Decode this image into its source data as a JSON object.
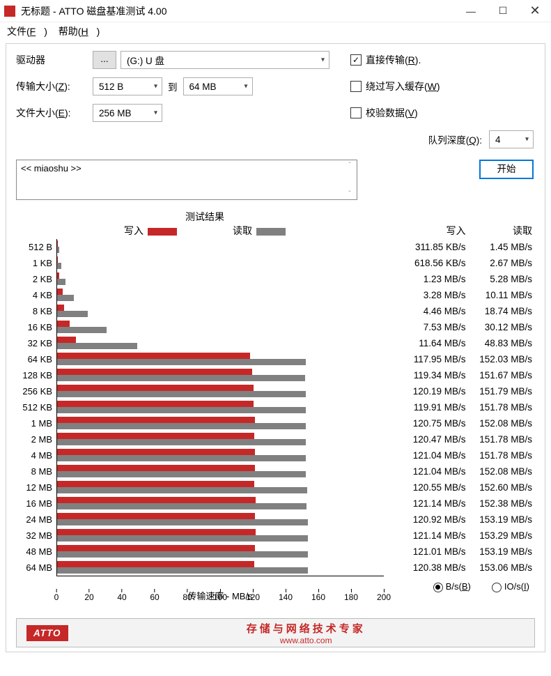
{
  "window": {
    "title": "无标题 - ATTO 磁盘基准测试 4.00"
  },
  "menu": {
    "file": "文件(F)",
    "help": "帮助(H)"
  },
  "labels": {
    "drive": "驱动器",
    "transfer_size": "传输大小(Z):",
    "to": "到",
    "file_size": "文件大小(E):",
    "direct_io": "直接传输(R).",
    "bypass_cache": "绕过写入缓存(W)",
    "verify": "校验数据(V)",
    "queue_depth": "队列深度(Q):",
    "start": "开始",
    "desc": "<< miaoshu >>",
    "results_title": "测试结果",
    "legend_write": "写入",
    "legend_read": "读取",
    "xaxis": "传输速率 - MB/s",
    "col_write": "写入",
    "col_read": "读取",
    "unit_bs": "B/s(B)",
    "unit_ios": "IO/s(I)",
    "footer_cn": "存储与网络技术专家",
    "footer_url": "www.atto.com",
    "atto": "ATTO"
  },
  "form": {
    "drive": "(G:) U 盘",
    "size_from": "512 B",
    "size_to": "64 MB",
    "file_size": "256 MB",
    "queue_depth": "4",
    "direct_io_checked": true,
    "bypass_checked": false,
    "verify_checked": false,
    "unit_selected": "bs"
  },
  "chart": {
    "xmax": 200,
    "xtick_step": 20,
    "write_color": "#c62828",
    "read_color": "#808080",
    "bg": "#ffffff",
    "rows": [
      {
        "label": "512 B",
        "write_mbs": 0.31185,
        "read_mbs": 1.45,
        "write_txt": "311.85 KB/s",
        "read_txt": "1.45 MB/s"
      },
      {
        "label": "1 KB",
        "write_mbs": 0.61856,
        "read_mbs": 2.67,
        "write_txt": "618.56 KB/s",
        "read_txt": "2.67 MB/s"
      },
      {
        "label": "2 KB",
        "write_mbs": 1.23,
        "read_mbs": 5.28,
        "write_txt": "1.23 MB/s",
        "read_txt": "5.28 MB/s"
      },
      {
        "label": "4 KB",
        "write_mbs": 3.28,
        "read_mbs": 10.11,
        "write_txt": "3.28 MB/s",
        "read_txt": "10.11 MB/s"
      },
      {
        "label": "8 KB",
        "write_mbs": 4.46,
        "read_mbs": 18.74,
        "write_txt": "4.46 MB/s",
        "read_txt": "18.74 MB/s"
      },
      {
        "label": "16 KB",
        "write_mbs": 7.53,
        "read_mbs": 30.12,
        "write_txt": "7.53 MB/s",
        "read_txt": "30.12 MB/s"
      },
      {
        "label": "32 KB",
        "write_mbs": 11.64,
        "read_mbs": 48.83,
        "write_txt": "11.64 MB/s",
        "read_txt": "48.83 MB/s"
      },
      {
        "label": "64 KB",
        "write_mbs": 117.95,
        "read_mbs": 152.03,
        "write_txt": "117.95 MB/s",
        "read_txt": "152.03 MB/s"
      },
      {
        "label": "128 KB",
        "write_mbs": 119.34,
        "read_mbs": 151.67,
        "write_txt": "119.34 MB/s",
        "read_txt": "151.67 MB/s"
      },
      {
        "label": "256 KB",
        "write_mbs": 120.19,
        "read_mbs": 151.79,
        "write_txt": "120.19 MB/s",
        "read_txt": "151.79 MB/s"
      },
      {
        "label": "512 KB",
        "write_mbs": 119.91,
        "read_mbs": 151.78,
        "write_txt": "119.91 MB/s",
        "read_txt": "151.78 MB/s"
      },
      {
        "label": "1 MB",
        "write_mbs": 120.75,
        "read_mbs": 152.08,
        "write_txt": "120.75 MB/s",
        "read_txt": "152.08 MB/s"
      },
      {
        "label": "2 MB",
        "write_mbs": 120.47,
        "read_mbs": 151.78,
        "write_txt": "120.47 MB/s",
        "read_txt": "151.78 MB/s"
      },
      {
        "label": "4 MB",
        "write_mbs": 121.04,
        "read_mbs": 151.78,
        "write_txt": "121.04 MB/s",
        "read_txt": "151.78 MB/s"
      },
      {
        "label": "8 MB",
        "write_mbs": 121.04,
        "read_mbs": 152.08,
        "write_txt": "121.04 MB/s",
        "read_txt": "152.08 MB/s"
      },
      {
        "label": "12 MB",
        "write_mbs": 120.55,
        "read_mbs": 152.6,
        "write_txt": "120.55 MB/s",
        "read_txt": "152.60 MB/s"
      },
      {
        "label": "16 MB",
        "write_mbs": 121.14,
        "read_mbs": 152.38,
        "write_txt": "121.14 MB/s",
        "read_txt": "152.38 MB/s"
      },
      {
        "label": "24 MB",
        "write_mbs": 120.92,
        "read_mbs": 153.19,
        "write_txt": "120.92 MB/s",
        "read_txt": "153.19 MB/s"
      },
      {
        "label": "32 MB",
        "write_mbs": 121.14,
        "read_mbs": 153.29,
        "write_txt": "121.14 MB/s",
        "read_txt": "153.29 MB/s"
      },
      {
        "label": "48 MB",
        "write_mbs": 121.01,
        "read_mbs": 153.19,
        "write_txt": "121.01 MB/s",
        "read_txt": "153.19 MB/s"
      },
      {
        "label": "64 MB",
        "write_mbs": 120.38,
        "read_mbs": 153.06,
        "write_txt": "120.38 MB/s",
        "read_txt": "153.06 MB/s"
      }
    ]
  }
}
